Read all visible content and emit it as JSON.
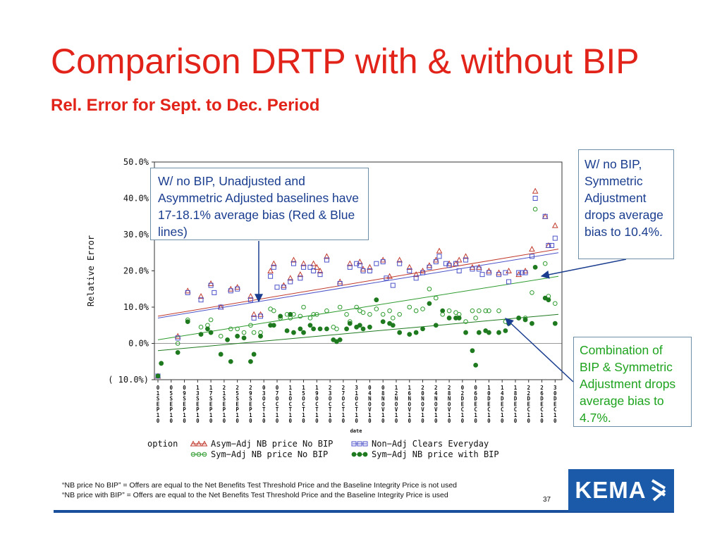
{
  "slide": {
    "title": "Comparison DRTP with & without BIP",
    "subtitle": "Rel. Error for Sept. to Dec. Period",
    "page_number": "37",
    "logo_text": "KEMA"
  },
  "callouts": {
    "left": "W/ no BIP, Unadjusted and Asymmetric Adjusted baselines have 17-18.1% average bias (Red & Blue lines)",
    "right_top": "W/ no BIP, Symmetric Adjustment drops average bias to 10.4%.",
    "right_bottom": "Combination of BIP & Symmetric Adjustment drops average bias to 4.7%."
  },
  "footnotes": [
    "“NB price No BIP” = Offers are equal to the Net Benefits Test Threshold Price and the Baseline Integrity Price is not used",
    "“NB price with BIP” = Offers are equal to the Net Benefits Test Threshold Price and the Baseline Integrity Price is used"
  ],
  "chart_data": {
    "type": "scatter",
    "title": "",
    "xlabel": "date",
    "ylabel": "Relative Error",
    "ylim": [
      -10,
      50
    ],
    "y_ticks": [
      50,
      40,
      30,
      20,
      10,
      0,
      -10
    ],
    "y_tick_labels": [
      "50.0%",
      "40.0%",
      "30.0%",
      "20.0%",
      "10.0%",
      "0.0%",
      "( 10.0%)"
    ],
    "x_tick_labels": [
      "01SEP10",
      "05SEP10",
      "09SEP10",
      "13SEP10",
      "17SEP10",
      "21SEP10",
      "25SEP10",
      "29SEP10",
      "03OCT10",
      "07OCT10",
      "11OCT10",
      "15OCT10",
      "19OCT10",
      "23OCT10",
      "27OCT10",
      "31OCT10",
      "04NOV10",
      "08NOV10",
      "12NOV10",
      "16NOV10",
      "20NOV10",
      "24NOV10",
      "28NOV10",
      "02DEC10",
      "06DEC10",
      "10DEC10",
      "14DEC10",
      "18DEC10",
      "22DEC10",
      "26DEC10",
      "30DEC10"
    ],
    "x_range_days": [
      0,
      121
    ],
    "legend_title": "option",
    "legend_position": "bottom",
    "series": [
      {
        "name": "Asym−Adj NB price No BIP",
        "color": "#c0392b",
        "marker": "triangle",
        "trend": [
          7.5,
          26
        ],
        "points": [
          [
            0,
            -9
          ],
          [
            6,
            2
          ],
          [
            9,
            14.5
          ],
          [
            13,
            13
          ],
          [
            16,
            16.5
          ],
          [
            19,
            10
          ],
          [
            22,
            15
          ],
          [
            24,
            15.5
          ],
          [
            28,
            13
          ],
          [
            29,
            8
          ],
          [
            31,
            8
          ],
          [
            34,
            20
          ],
          [
            35,
            22
          ],
          [
            38,
            16
          ],
          [
            40,
            18
          ],
          [
            41,
            23
          ],
          [
            43,
            19
          ],
          [
            44,
            22
          ],
          [
            47,
            22
          ],
          [
            48,
            21
          ],
          [
            49,
            20
          ],
          [
            51,
            24
          ],
          [
            55,
            17
          ],
          [
            58,
            22
          ],
          [
            61,
            22.5
          ],
          [
            62,
            20.5
          ],
          [
            64,
            21
          ],
          [
            68,
            23
          ],
          [
            70,
            18.5
          ],
          [
            73,
            23
          ],
          [
            76,
            21
          ],
          [
            78,
            19
          ],
          [
            80,
            20
          ],
          [
            82,
            21.5
          ],
          [
            84,
            23
          ],
          [
            85,
            25.5
          ],
          [
            88,
            22
          ],
          [
            90,
            22
          ],
          [
            91,
            23
          ],
          [
            93,
            24
          ],
          [
            95,
            21
          ],
          [
            97,
            21
          ],
          [
            100,
            20
          ],
          [
            103,
            19.5
          ],
          [
            106,
            20
          ],
          [
            109,
            19
          ],
          [
            111,
            20
          ],
          [
            113,
            26
          ],
          [
            114,
            42
          ],
          [
            117,
            35
          ],
          [
            118,
            27
          ],
          [
            120,
            32.5
          ]
        ]
      },
      {
        "name": "Non−Adj Clears Everyday",
        "color": "#4b52c8",
        "marker": "square",
        "trend": [
          7,
          25
        ],
        "points": [
          [
            0,
            -9
          ],
          [
            6,
            1.5
          ],
          [
            9,
            14
          ],
          [
            13,
            12
          ],
          [
            16,
            16
          ],
          [
            17,
            14
          ],
          [
            19,
            10
          ],
          [
            22,
            14.5
          ],
          [
            24,
            15
          ],
          [
            28,
            12
          ],
          [
            29,
            7
          ],
          [
            31,
            7.5
          ],
          [
            34,
            18.5
          ],
          [
            35,
            21
          ],
          [
            36,
            15.5
          ],
          [
            38,
            15.5
          ],
          [
            40,
            17
          ],
          [
            41,
            22
          ],
          [
            43,
            18
          ],
          [
            44,
            21
          ],
          [
            46,
            21
          ],
          [
            47,
            20
          ],
          [
            49,
            19
          ],
          [
            51,
            23
          ],
          [
            55,
            16.5
          ],
          [
            58,
            21
          ],
          [
            60,
            22
          ],
          [
            61,
            21.5
          ],
          [
            62,
            20
          ],
          [
            64,
            20
          ],
          [
            66,
            22
          ],
          [
            68,
            22.5
          ],
          [
            69,
            18
          ],
          [
            71,
            16
          ],
          [
            73,
            22
          ],
          [
            76,
            20
          ],
          [
            78,
            18
          ],
          [
            80,
            19.5
          ],
          [
            82,
            21
          ],
          [
            84,
            22.5
          ],
          [
            85,
            24
          ],
          [
            87,
            22
          ],
          [
            88,
            21.5
          ],
          [
            90,
            22
          ],
          [
            91,
            20
          ],
          [
            93,
            23
          ],
          [
            95,
            20.5
          ],
          [
            97,
            20.5
          ],
          [
            98,
            19
          ],
          [
            100,
            19.5
          ],
          [
            103,
            19
          ],
          [
            105,
            19.5
          ],
          [
            106,
            17
          ],
          [
            109,
            19.5
          ],
          [
            110,
            19.5
          ],
          [
            111,
            19.5
          ],
          [
            113,
            24
          ],
          [
            114,
            40
          ],
          [
            117,
            35
          ],
          [
            118,
            27
          ],
          [
            119,
            27
          ],
          [
            120,
            29
          ]
        ]
      },
      {
        "name": "Sym−Adj NB price No BIP",
        "color": "#2e9b2e",
        "marker": "circle-open",
        "trend": [
          1,
          18.5
        ],
        "points": [
          [
            0,
            -9
          ],
          [
            6,
            0
          ],
          [
            9,
            6.5
          ],
          [
            13,
            4.5
          ],
          [
            15,
            5
          ],
          [
            16,
            6.5
          ],
          [
            19,
            2
          ],
          [
            22,
            4
          ],
          [
            24,
            4
          ],
          [
            26,
            3
          ],
          [
            28,
            5
          ],
          [
            29,
            3
          ],
          [
            31,
            3
          ],
          [
            34,
            9.5
          ],
          [
            35,
            9
          ],
          [
            37,
            7
          ],
          [
            39,
            8
          ],
          [
            40,
            7
          ],
          [
            41,
            8
          ],
          [
            43,
            7.5
          ],
          [
            44,
            10
          ],
          [
            46,
            7
          ],
          [
            47,
            8
          ],
          [
            48,
            8
          ],
          [
            51,
            9
          ],
          [
            53,
            4.5
          ],
          [
            54,
            4
          ],
          [
            55,
            10
          ],
          [
            57,
            8
          ],
          [
            58,
            6
          ],
          [
            60,
            10
          ],
          [
            61,
            9
          ],
          [
            62,
            8.5
          ],
          [
            64,
            8
          ],
          [
            66,
            9.5
          ],
          [
            68,
            8
          ],
          [
            70,
            9
          ],
          [
            71,
            7
          ],
          [
            73,
            8
          ],
          [
            76,
            10
          ],
          [
            78,
            9
          ],
          [
            80,
            9.5
          ],
          [
            82,
            15
          ],
          [
            84,
            12.5
          ],
          [
            86,
            8
          ],
          [
            88,
            9
          ],
          [
            90,
            8.5
          ],
          [
            91,
            8
          ],
          [
            93,
            6
          ],
          [
            95,
            9
          ],
          [
            96,
            7
          ],
          [
            97,
            9
          ],
          [
            99,
            9
          ],
          [
            100,
            9
          ],
          [
            103,
            9
          ],
          [
            105,
            6
          ],
          [
            109,
            7
          ],
          [
            111,
            7
          ],
          [
            113,
            14
          ],
          [
            114,
            37
          ],
          [
            117,
            22
          ],
          [
            118,
            13
          ],
          [
            120,
            11
          ]
        ]
      },
      {
        "name": "Sym−Adj NB price with BIP",
        "color": "#1f7a1f",
        "marker": "circle-filled",
        "trend": [
          -2,
          8
        ],
        "points": [
          [
            0,
            -9
          ],
          [
            1,
            -5.5
          ],
          [
            6,
            -2.5
          ],
          [
            9,
            6
          ],
          [
            13,
            2.5
          ],
          [
            15,
            4
          ],
          [
            16,
            3
          ],
          [
            19,
            -3
          ],
          [
            21,
            1
          ],
          [
            22,
            -5
          ],
          [
            24,
            2
          ],
          [
            26,
            1.5
          ],
          [
            28,
            -5
          ],
          [
            29,
            -3
          ],
          [
            31,
            2
          ],
          [
            34,
            5
          ],
          [
            35,
            5
          ],
          [
            37,
            7.5
          ],
          [
            39,
            3.5
          ],
          [
            40,
            8
          ],
          [
            41,
            3
          ],
          [
            43,
            4
          ],
          [
            44,
            3
          ],
          [
            46,
            5
          ],
          [
            47,
            4
          ],
          [
            49,
            4
          ],
          [
            51,
            4
          ],
          [
            53,
            1
          ],
          [
            54,
            0.5
          ],
          [
            55,
            1
          ],
          [
            57,
            4
          ],
          [
            58,
            5.5
          ],
          [
            60,
            4.5
          ],
          [
            61,
            5
          ],
          [
            62,
            4
          ],
          [
            64,
            4.5
          ],
          [
            66,
            12
          ],
          [
            68,
            6
          ],
          [
            70,
            5.5
          ],
          [
            71,
            5
          ],
          [
            73,
            3
          ],
          [
            76,
            2.5
          ],
          [
            78,
            3
          ],
          [
            80,
            4
          ],
          [
            82,
            11
          ],
          [
            84,
            5
          ],
          [
            86,
            9
          ],
          [
            88,
            7
          ],
          [
            90,
            7
          ],
          [
            91,
            7
          ],
          [
            93,
            3
          ],
          [
            95,
            -2
          ],
          [
            96,
            -6
          ],
          [
            97,
            3
          ],
          [
            99,
            3.5
          ],
          [
            100,
            3
          ],
          [
            103,
            3
          ],
          [
            105,
            3.5
          ],
          [
            106,
            5.5
          ],
          [
            109,
            7
          ],
          [
            111,
            6.5
          ],
          [
            113,
            5.5
          ],
          [
            114,
            21
          ],
          [
            117,
            12.5
          ],
          [
            118,
            12
          ],
          [
            120,
            5.5
          ]
        ]
      }
    ]
  }
}
